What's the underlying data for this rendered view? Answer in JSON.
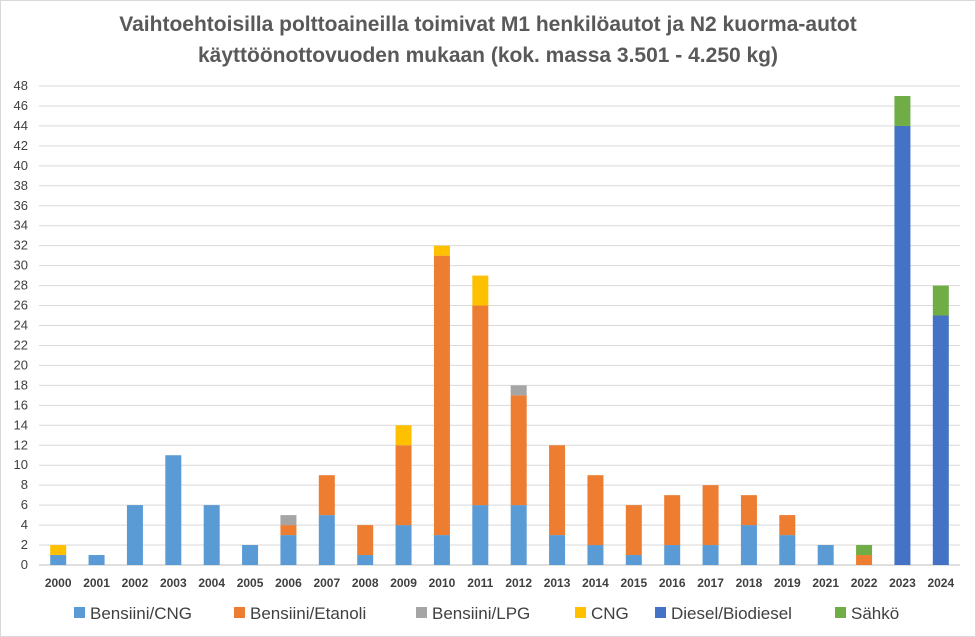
{
  "chart_data": {
    "type": "bar",
    "stacked": true,
    "title_lines": [
      "Vaihtoehtoisilla polttoaineilla toimivat M1 henkilöautot ja N2 kuorma-autot",
      "käyttöönottovuoden mukaan (kok. massa 3.501 - 4.250 kg)"
    ],
    "categories": [
      "2000",
      "2001",
      "2002",
      "2003",
      "2004",
      "2005",
      "2006",
      "2007",
      "2008",
      "2009",
      "2010",
      "2011",
      "2012",
      "2013",
      "2014",
      "2015",
      "2016",
      "2017",
      "2018",
      "2019",
      "2021",
      "2022",
      "2023",
      "2024"
    ],
    "ylim": [
      0,
      48
    ],
    "ytick_step": 2,
    "grid": true,
    "legend_position": "bottom",
    "series": [
      {
        "name": "Bensiini/CNG",
        "color": "#5b9bd5",
        "values": [
          1,
          1,
          6,
          11,
          6,
          2,
          3,
          5,
          1,
          4,
          3,
          6,
          6,
          3,
          2,
          1,
          2,
          2,
          4,
          3,
          2,
          0,
          0,
          0
        ]
      },
      {
        "name": "Bensiini/Etanoli",
        "color": "#ed7d31",
        "values": [
          0,
          0,
          0,
          0,
          0,
          0,
          1,
          4,
          3,
          8,
          28,
          20,
          11,
          9,
          7,
          5,
          5,
          6,
          3,
          2,
          0,
          1,
          0,
          0
        ]
      },
      {
        "name": "Bensiini/LPG",
        "color": "#a5a5a5",
        "values": [
          0,
          0,
          0,
          0,
          0,
          0,
          1,
          0,
          0,
          0,
          0,
          0,
          1,
          0,
          0,
          0,
          0,
          0,
          0,
          0,
          0,
          0,
          0,
          0
        ]
      },
      {
        "name": "CNG",
        "color": "#ffc000",
        "values": [
          1,
          0,
          0,
          0,
          0,
          0,
          0,
          0,
          0,
          2,
          1,
          3,
          0,
          0,
          0,
          0,
          0,
          0,
          0,
          0,
          0,
          0,
          0,
          0
        ]
      },
      {
        "name": "Diesel/Biodiesel",
        "color": "#4472c4",
        "values": [
          0,
          0,
          0,
          0,
          0,
          0,
          0,
          0,
          0,
          0,
          0,
          0,
          0,
          0,
          0,
          0,
          0,
          0,
          0,
          0,
          0,
          0,
          44,
          25
        ]
      },
      {
        "name": "Sähkö",
        "color": "#70ad47",
        "values": [
          0,
          0,
          0,
          0,
          0,
          0,
          0,
          0,
          0,
          0,
          0,
          0,
          0,
          0,
          0,
          0,
          0,
          0,
          0,
          0,
          0,
          1,
          3,
          3
        ]
      }
    ]
  }
}
